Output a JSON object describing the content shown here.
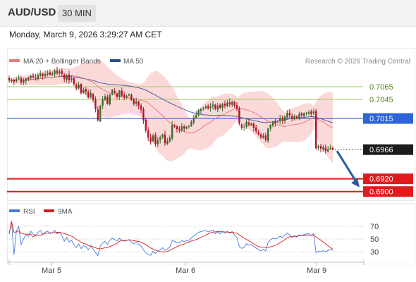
{
  "header": {
    "pair": "AUD/USD",
    "timeframe": "30 MIN",
    "datetime": "Monday, March 9, 2026 3:29:27 AM CET"
  },
  "legend": {
    "ma20": "MA 20 + Bollinger Bands",
    "ma50": "MA 50",
    "credit": "Research © 2026 Trading Central",
    "rsi": "RSI",
    "rsi9": "9MA"
  },
  "colors": {
    "candle_up": "#3b6b2f",
    "candle_down": "#b4132a",
    "ma20": "#e67c79",
    "bollinger_fill": "#fcd2d2",
    "ma50": "#4a5fa3",
    "resistance": "#9bd156",
    "pivot": "#2d64d8",
    "support": "#e11b1b",
    "arrow": "#2a5ba6",
    "rsi": "#4a7bd9",
    "rsi_ma": "#d91e1e"
  },
  "chart_data": [
    {
      "type": "candlestick",
      "title": "AUD/USD",
      "x_ticks": [
        "Mar 5",
        "Mar 6",
        "Mar 9"
      ],
      "y_range": [
        0.6895,
        0.7085
      ],
      "current_price": "0.6966",
      "levels": [
        {
          "label": "0.7065",
          "value": 0.7065,
          "kind": "resistance"
        },
        {
          "label": "0.7045",
          "value": 0.7045,
          "kind": "resistance"
        },
        {
          "label": "0.7015",
          "value": 0.7015,
          "kind": "pivot"
        },
        {
          "label": "0.6920",
          "value": 0.692,
          "kind": "support"
        },
        {
          "label": "0.6900",
          "value": 0.69,
          "kind": "support"
        }
      ],
      "forecast_arrow": {
        "from": 0.6966,
        "to": 0.692
      },
      "series": [
        {
          "name": "MA 20 + Bollinger Bands",
          "kind": "ma20"
        },
        {
          "name": "MA 50",
          "kind": "ma50"
        }
      ],
      "close": [
        0.7075,
        0.7076,
        0.7073,
        0.7077,
        0.7079,
        0.7072,
        0.7075,
        0.7078,
        0.7077,
        0.7082,
        0.708,
        0.7078,
        0.7083,
        0.7086,
        0.7082,
        0.7085,
        0.7087,
        0.7084,
        0.7086,
        0.709,
        0.7086,
        0.7089,
        0.7085,
        0.7077,
        0.7083,
        0.7075,
        0.7078,
        0.7069,
        0.7062,
        0.7068,
        0.7055,
        0.706,
        0.7057,
        0.7048,
        0.7055,
        0.7045,
        0.703,
        0.7012,
        0.7035,
        0.7045,
        0.705,
        0.7038,
        0.7052,
        0.706,
        0.7055,
        0.7049,
        0.7059,
        0.7051,
        0.7048,
        0.705,
        0.7053,
        0.7044,
        0.7038,
        0.7042,
        0.7035,
        0.7029,
        0.7012,
        0.6996,
        0.6985,
        0.6978,
        0.6988,
        0.6975,
        0.6981,
        0.6985,
        0.699,
        0.6976,
        0.698,
        0.6985,
        0.7005,
        0.7002,
        0.6998,
        0.6996,
        0.7003,
        0.6999,
        0.7002,
        0.7003,
        0.701,
        0.7016,
        0.7021,
        0.7028,
        0.703,
        0.7032,
        0.7034,
        0.7031,
        0.7034,
        0.7037,
        0.703,
        0.7035,
        0.7032,
        0.7038,
        0.7035,
        0.704,
        0.7037,
        0.7041,
        0.7035,
        0.703,
        0.7007,
        0.7,
        0.7002,
        0.701,
        0.7005,
        0.7007,
        0.7,
        0.6995,
        0.699,
        0.6985,
        0.6988,
        0.6981,
        0.6999,
        0.7005,
        0.701,
        0.7008,
        0.701,
        0.7015,
        0.7012,
        0.7018,
        0.7024,
        0.702,
        0.7015,
        0.7019,
        0.7016,
        0.7022,
        0.702,
        0.7023,
        0.7024,
        0.7025,
        0.7022,
        0.7026,
        0.6968,
        0.6972,
        0.6967,
        0.697,
        0.6964,
        0.6967,
        0.6969,
        0.6966
      ]
    },
    {
      "type": "line",
      "title": "RSI",
      "y_ticks": [
        70,
        50,
        30
      ],
      "series": [
        {
          "name": "RSI"
        },
        {
          "name": "9MA"
        }
      ]
    }
  ]
}
